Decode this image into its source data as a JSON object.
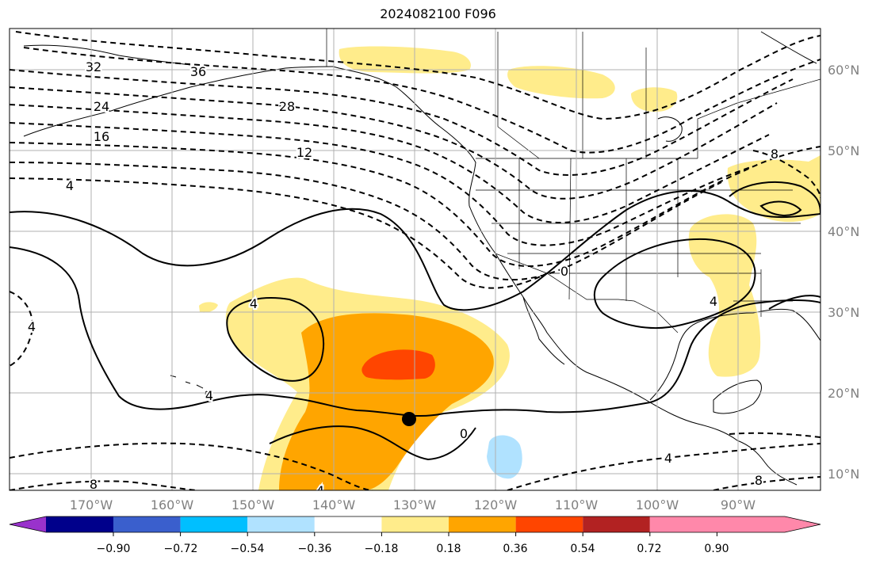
{
  "title": "2024082100 F096",
  "lon_labels": [
    "170°W",
    "160°W",
    "150°W",
    "140°W",
    "130°W",
    "120°W",
    "110°W",
    "100°W",
    "90°W"
  ],
  "lat_labels": [
    "60°N",
    "50°N",
    "40°N",
    "30°N",
    "20°N",
    "10°N"
  ],
  "contour_labels": [
    "32",
    "36",
    "24",
    "28",
    "16",
    "12",
    "4",
    "4",
    "4",
    "4",
    "0",
    "0",
    "4",
    "8",
    "4",
    "8",
    "8",
    "4"
  ],
  "colorbar": {
    "tick_labels": [
      "−0.90",
      "−0.72",
      "−0.54",
      "−0.36",
      "−0.18",
      "0.18",
      "0.36",
      "0.54",
      "0.72",
      "0.90"
    ],
    "colors": [
      "#9932cc",
      "#00008b",
      "#3a5fcd",
      "#00bfff",
      "#b0e2ff",
      "#ffffff",
      "#ffec8b",
      "#ffa500",
      "#ff4500",
      "#b22222",
      "#ff88aa"
    ]
  },
  "colors": {
    "light_yellow": "#ffec8b",
    "orange": "#ffa500",
    "red_orange": "#ff4500",
    "light_blue": "#b0e2ff",
    "grid": "#b0b0b0",
    "contour": "#000000"
  }
}
